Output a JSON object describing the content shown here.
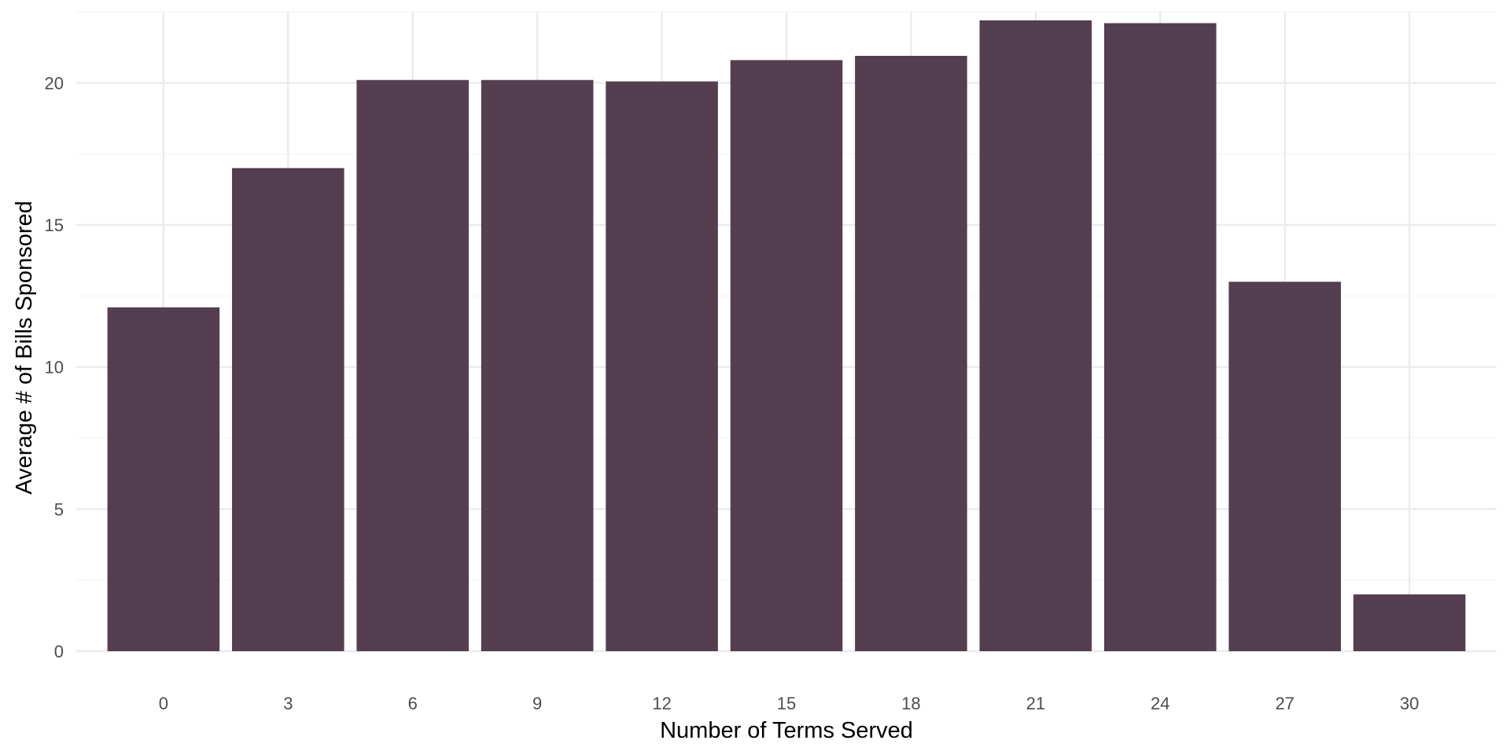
{
  "colors": {
    "bar": "#553e50",
    "grid_major": "#ebebeb",
    "grid_minor": "#f5f5f5",
    "background": "#ffffff"
  },
  "chart_data": {
    "type": "bar",
    "title": "",
    "xlabel": "Number of Terms Served",
    "ylabel": "Average # of Bills Sponsored",
    "x": [
      0,
      3,
      6,
      9,
      12,
      15,
      18,
      21,
      24,
      27,
      30
    ],
    "values": [
      12.1,
      17.0,
      20.1,
      20.1,
      20.05,
      20.8,
      20.95,
      22.2,
      22.1,
      13.0,
      2.0
    ],
    "x_ticks": [
      "0",
      "3",
      "6",
      "9",
      "12",
      "15",
      "18",
      "21",
      "24",
      "27",
      "30"
    ],
    "y_ticks": [
      "0",
      "5",
      "10",
      "15",
      "20"
    ],
    "xlim": [
      -2.1,
      32.1
    ],
    "ylim": [
      0,
      22.5
    ],
    "grid": true,
    "legend": "none"
  }
}
